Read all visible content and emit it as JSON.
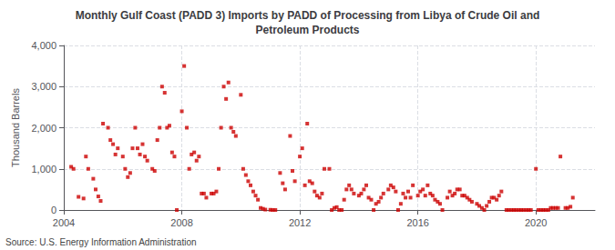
{
  "chart_data": {
    "type": "scatter",
    "title": "Monthly Gulf Coast (PADD 3) Imports by PADD of Processing from Libya of Crude Oil and\nPetroleum Products",
    "ylabel": "Thousand Barrels",
    "source": "Source: U.S. Energy Information Administration",
    "color": "#cc0000",
    "marker": "square",
    "grid": true,
    "xlim": [
      2004,
      2022
    ],
    "xticks": [
      2004,
      2008,
      2012,
      2016,
      2020
    ],
    "ylim": [
      0,
      4000
    ],
    "yticks": [
      0,
      {
        "value": 1000,
        "label": "1,000"
      },
      {
        "value": 2000,
        "label": "2,000"
      },
      {
        "value": 3000,
        "label": "3,000"
      },
      {
        "value": 4000,
        "label": "4,000"
      }
    ],
    "x": [
      2004.25,
      2004.33,
      2004.5,
      2004.67,
      2004.75,
      2004.83,
      2005.0,
      2005.08,
      2005.17,
      2005.25,
      2005.33,
      2005.5,
      2005.58,
      2005.67,
      2005.75,
      2005.83,
      2006.0,
      2006.08,
      2006.17,
      2006.25,
      2006.33,
      2006.42,
      2006.5,
      2006.58,
      2006.67,
      2006.75,
      2006.83,
      2007.0,
      2007.08,
      2007.17,
      2007.25,
      2007.33,
      2007.42,
      2007.5,
      2007.58,
      2007.67,
      2007.75,
      2007.83,
      2008.0,
      2008.08,
      2008.17,
      2008.25,
      2008.33,
      2008.42,
      2008.5,
      2008.58,
      2008.67,
      2008.75,
      2008.83,
      2009.0,
      2009.08,
      2009.17,
      2009.25,
      2009.33,
      2009.42,
      2009.5,
      2009.58,
      2009.67,
      2009.75,
      2009.83,
      2010.0,
      2010.08,
      2010.17,
      2010.25,
      2010.33,
      2010.42,
      2010.5,
      2010.58,
      2010.67,
      2010.75,
      2010.83,
      2011.0,
      2011.08,
      2011.17,
      2011.33,
      2011.42,
      2011.5,
      2011.67,
      2011.75,
      2011.83,
      2012.0,
      2012.08,
      2012.17,
      2012.25,
      2012.33,
      2012.42,
      2012.5,
      2012.58,
      2012.67,
      2012.75,
      2012.83,
      2013.0,
      2013.08,
      2013.17,
      2013.25,
      2013.33,
      2013.42,
      2013.5,
      2013.58,
      2013.67,
      2013.75,
      2013.83,
      2014.0,
      2014.08,
      2014.17,
      2014.25,
      2014.33,
      2014.42,
      2014.5,
      2014.58,
      2014.67,
      2014.75,
      2014.83,
      2015.0,
      2015.08,
      2015.17,
      2015.25,
      2015.33,
      2015.42,
      2015.5,
      2015.58,
      2015.67,
      2015.75,
      2015.83,
      2016.0,
      2016.08,
      2016.17,
      2016.25,
      2016.33,
      2016.42,
      2016.5,
      2016.58,
      2016.67,
      2016.75,
      2016.83,
      2017.0,
      2017.08,
      2017.17,
      2017.25,
      2017.33,
      2017.42,
      2017.5,
      2017.58,
      2017.67,
      2017.75,
      2017.83,
      2018.0,
      2018.08,
      2018.17,
      2018.25,
      2018.33,
      2018.42,
      2018.5,
      2018.58,
      2018.67,
      2018.75,
      2018.83,
      2019.0,
      2019.08,
      2019.17,
      2019.25,
      2019.33,
      2019.42,
      2019.5,
      2019.58,
      2019.67,
      2019.75,
      2019.83,
      2020.0,
      2020.08,
      2020.17,
      2020.25,
      2020.33,
      2020.42,
      2020.5,
      2020.58,
      2020.67,
      2020.75,
      2020.83,
      2021.0,
      2021.08,
      2021.17,
      2021.25
    ],
    "values": [
      1050,
      1000,
      320,
      280,
      1300,
      1000,
      760,
      500,
      330,
      220,
      2100,
      2000,
      1700,
      1600,
      1350,
      1500,
      1300,
      1000,
      800,
      900,
      1500,
      2000,
      1500,
      1350,
      1600,
      1300,
      1200,
      1000,
      950,
      1700,
      2000,
      3000,
      2850,
      2000,
      2050,
      1400,
      1300,
      0,
      2400,
      3500,
      2000,
      1000,
      1350,
      1400,
      1200,
      1300,
      400,
      400,
      300,
      400,
      400,
      450,
      1000,
      2000,
      3000,
      2700,
      3100,
      2000,
      1900,
      1800,
      2800,
      1000,
      850,
      700,
      600,
      450,
      350,
      250,
      50,
      30,
      10,
      5,
      0,
      0,
      900,
      650,
      500,
      1800,
      950,
      700,
      1300,
      1500,
      600,
      2100,
      700,
      650,
      450,
      350,
      300,
      400,
      1000,
      1000,
      0,
      50,
      70,
      0,
      0,
      250,
      500,
      600,
      500,
      400,
      350,
      400,
      500,
      600,
      300,
      250,
      0,
      150,
      200,
      300,
      400,
      500,
      600,
      550,
      450,
      0,
      150,
      400,
      300,
      450,
      300,
      600,
      350,
      450,
      500,
      350,
      600,
      400,
      350,
      250,
      200,
      150,
      0,
      300,
      450,
      350,
      400,
      500,
      500,
      350,
      350,
      300,
      250,
      200,
      150,
      100,
      50,
      0,
      100,
      200,
      300,
      300,
      250,
      350,
      450,
      0,
      0,
      0,
      0,
      0,
      0,
      0,
      0,
      0,
      0,
      0,
      1000,
      0,
      0,
      0,
      0,
      0,
      50,
      50,
      50,
      50,
      1300,
      50,
      50,
      80,
      300
    ]
  }
}
